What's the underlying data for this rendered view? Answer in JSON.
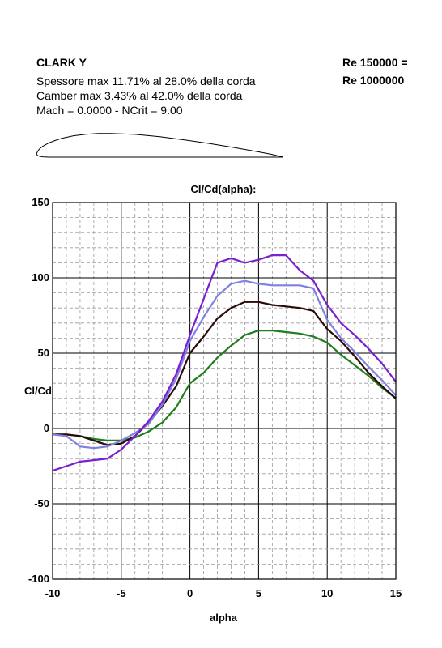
{
  "header": {
    "airfoil_name": "CLARK Y",
    "thickness_line": "Spessore max 11.71% al 28.0% della corda",
    "camber_line": "Camber max 3.43% al 42.0% della corda",
    "mach_line": "Mach = 0.0000 - NCrit = 9.00",
    "re_line1": "Re 150000 =",
    "re_line2": "Re 1000000"
  },
  "chart_data": {
    "type": "line",
    "title": "Cl/Cd(alpha):",
    "xlabel": "alpha",
    "ylabel": "Cl/Cd",
    "xlim": [
      -10,
      15
    ],
    "ylim": [
      -100,
      150
    ],
    "x_ticks": [
      "-10",
      "-5",
      "0",
      "5",
      "10",
      "15"
    ],
    "y_ticks": [
      "150",
      "100",
      "50",
      "0",
      "-50",
      "-100"
    ],
    "grid": true,
    "series": [
      {
        "color": "#1e7d1e",
        "x": [
          -10,
          -9,
          -8,
          -7,
          -6,
          -5,
          -4,
          -3,
          -2,
          -1,
          0,
          1,
          2,
          3,
          4,
          5,
          6,
          7,
          8,
          9,
          10,
          11,
          12,
          13,
          14,
          15
        ],
        "y": [
          -4,
          -4,
          -5,
          -7,
          -8,
          -8,
          -6,
          -2,
          4,
          14,
          30,
          37,
          47,
          55,
          62,
          65,
          65,
          64,
          63,
          61,
          57,
          49,
          42,
          35,
          27,
          20
        ]
      },
      {
        "color": "#2a0a0a",
        "x": [
          -10,
          -9,
          -8,
          -7,
          -6,
          -5,
          -4,
          -3,
          -2,
          -1,
          0,
          1,
          2,
          3,
          4,
          5,
          6,
          7,
          8,
          9,
          10,
          11,
          12,
          13,
          14,
          15
        ],
        "y": [
          -4,
          -4,
          -5,
          -8,
          -11,
          -10,
          -5,
          4,
          15,
          28,
          50,
          61,
          73,
          80,
          84,
          84,
          82,
          81,
          80,
          78,
          66,
          58,
          48,
          37,
          28,
          20
        ]
      },
      {
        "color": "#8080e0",
        "x": [
          -10,
          -9,
          -8,
          -7,
          -6,
          -5,
          -4,
          -3,
          -2,
          -1,
          0,
          1,
          2,
          3,
          4,
          5,
          6,
          7,
          8,
          9,
          10,
          11,
          12,
          13,
          14,
          15
        ],
        "y": [
          -4,
          -5,
          -12,
          -13,
          -12,
          -8,
          -3,
          3,
          16,
          33,
          58,
          74,
          88,
          96,
          98,
          96,
          95,
          95,
          95,
          93,
          72,
          60,
          51,
          41,
          32,
          22
        ]
      },
      {
        "color": "#7a20d0",
        "x": [
          -10,
          -9,
          -8,
          -7,
          -6,
          -5,
          -4,
          -3,
          -2,
          -1,
          0,
          1,
          2,
          3,
          4,
          5,
          6,
          7,
          8,
          9,
          10,
          11,
          12,
          13,
          14,
          15
        ],
        "y": [
          -28,
          -25,
          -22,
          -21,
          -20,
          -14,
          -5,
          5,
          18,
          36,
          62,
          86,
          110,
          113,
          110,
          112,
          115,
          115,
          105,
          98,
          82,
          70,
          62,
          53,
          43,
          31
        ]
      }
    ]
  },
  "airfoil": {
    "upper": [
      [
        1,
        0
      ],
      [
        0.95,
        0.0117
      ],
      [
        0.9,
        0.0214
      ],
      [
        0.8,
        0.039
      ],
      [
        0.7,
        0.0553
      ],
      [
        0.6,
        0.07
      ],
      [
        0.5,
        0.0829
      ],
      [
        0.4,
        0.0922
      ],
      [
        0.3,
        0.0961
      ],
      [
        0.25,
        0.0957
      ],
      [
        0.2,
        0.0929
      ],
      [
        0.15,
        0.0864
      ],
      [
        0.1,
        0.0753
      ],
      [
        0.075,
        0.0673
      ],
      [
        0.05,
        0.0577
      ],
      [
        0.025,
        0.0436
      ],
      [
        0.0125,
        0.0335
      ],
      [
        0.005,
        0.0235
      ],
      [
        0,
        0.0123
      ]
    ],
    "lower": [
      [
        0,
        0.0123
      ],
      [
        0.005,
        0.0062
      ],
      [
        0.0125,
        0.0036
      ],
      [
        0.025,
        0.0013
      ],
      [
        0.05,
        0
      ],
      [
        0.1,
        0
      ],
      [
        0.2,
        0
      ],
      [
        0.3,
        0
      ],
      [
        0.4,
        0
      ],
      [
        0.5,
        0
      ],
      [
        0.6,
        0
      ],
      [
        0.7,
        0
      ],
      [
        0.8,
        0
      ],
      [
        0.9,
        0
      ],
      [
        1,
        0
      ]
    ]
  }
}
